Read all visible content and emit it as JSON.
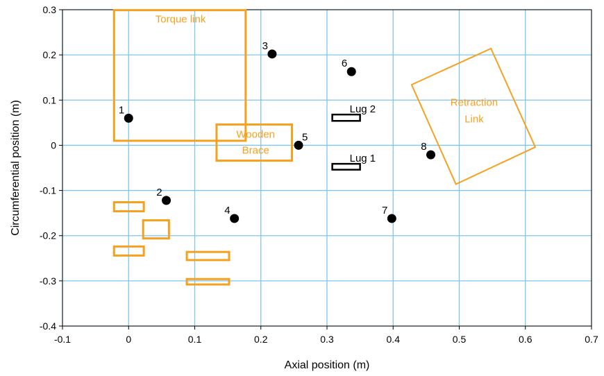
{
  "chart_data": {
    "type": "scatter",
    "xlabel": "Axial position (m)",
    "ylabel": "Circumferential position (m)",
    "xlim": [
      -0.1,
      0.7
    ],
    "ylim": [
      -0.4,
      0.3
    ],
    "x_ticks": [
      "-0.1",
      "0",
      "0.1",
      "0.2",
      "0.3",
      "0.4",
      "0.5",
      "0.6",
      "0.7"
    ],
    "y_ticks": [
      "0.3",
      "0.2",
      "0.1",
      "0",
      "-0.1",
      "-0.2",
      "-0.3",
      "-0.4"
    ],
    "grid": true,
    "grid_color": "#7fc4f0",
    "point_color": "#000000",
    "orange": "#f5a11f",
    "points": [
      {
        "label": "1",
        "x": 0.0,
        "y": 0.06
      },
      {
        "label": "2",
        "x": 0.057,
        "y": -0.122
      },
      {
        "label": "3",
        "x": 0.217,
        "y": 0.202
      },
      {
        "label": "4",
        "x": 0.16,
        "y": -0.162
      },
      {
        "label": "5",
        "x": 0.257,
        "y": 0.0
      },
      {
        "label": "6",
        "x": 0.337,
        "y": 0.163
      },
      {
        "label": "7",
        "x": 0.398,
        "y": -0.162
      },
      {
        "label": "8",
        "x": 0.457,
        "y": -0.021
      }
    ],
    "orange_rects": [
      {
        "label": "Torque link",
        "x0": -0.022,
        "y0": 0.01,
        "x1": 0.177,
        "y1": 0.299
      },
      {
        "label": "Wooden Brace",
        "x0": 0.133,
        "y0": -0.034,
        "x1": 0.247,
        "y1": 0.046
      },
      {
        "label": "",
        "x0": -0.022,
        "y0": -0.146,
        "x1": 0.023,
        "y1": -0.126
      },
      {
        "label": "",
        "x0": 0.022,
        "y0": -0.206,
        "x1": 0.061,
        "y1": -0.166
      },
      {
        "label": "",
        "x0": -0.022,
        "y0": -0.244,
        "x1": 0.023,
        "y1": -0.224
      },
      {
        "label": "",
        "x0": 0.088,
        "y0": -0.254,
        "x1": 0.152,
        "y1": -0.236
      },
      {
        "label": "",
        "x0": 0.088,
        "y0": -0.308,
        "x1": 0.152,
        "y1": -0.296
      }
    ],
    "lugs": [
      {
        "label": "Lug 2",
        "x0": 0.308,
        "y0": 0.054,
        "x1": 0.35,
        "y1": 0.068
      },
      {
        "label": "Lug 1",
        "x0": 0.308,
        "y0": -0.054,
        "x1": 0.35,
        "y1": -0.041
      }
    ],
    "retraction_link": {
      "label_line1": "Retraction",
      "label_line2": "Link",
      "corners": [
        [
          0.428,
          0.134
        ],
        [
          0.548,
          0.214
        ],
        [
          0.615,
          -0.004
        ],
        [
          0.495,
          -0.086
        ]
      ]
    }
  }
}
